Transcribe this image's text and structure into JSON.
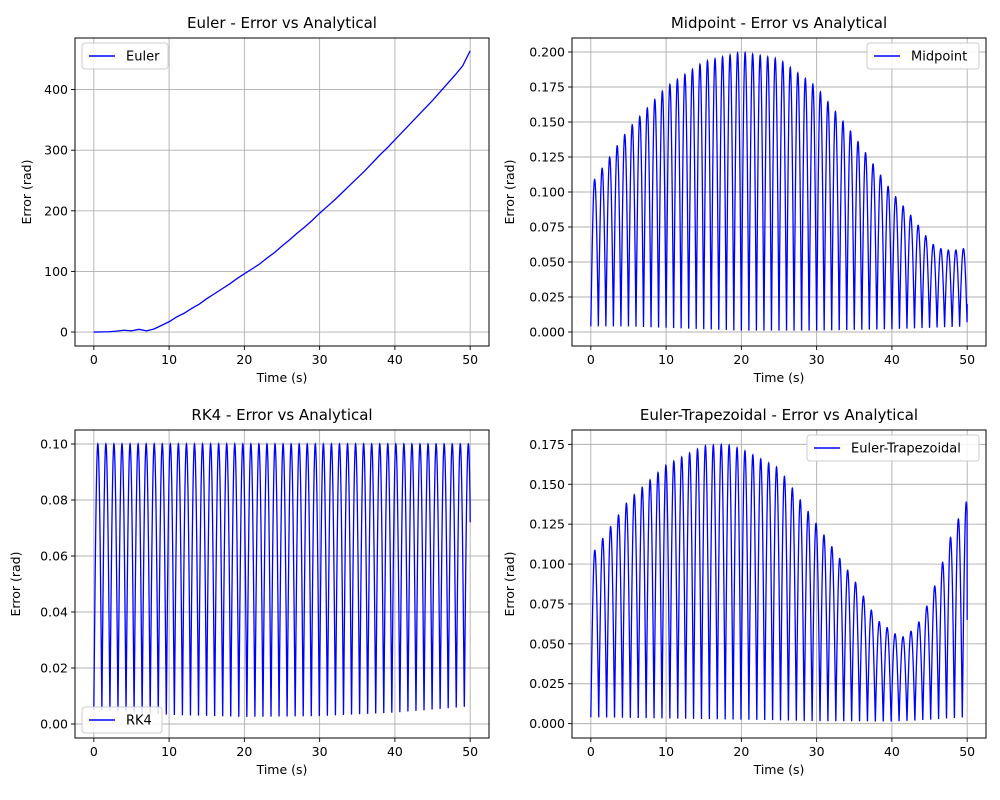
{
  "chart_data": [
    {
      "type": "line",
      "title": "Euler - Error vs Analytical",
      "xlabel": "Time (s)",
      "ylabel": "Error (rad)",
      "xlim": [
        -2.5,
        52.5
      ],
      "ylim": [
        -23,
        485
      ],
      "xticks": [
        0,
        10,
        20,
        30,
        40,
        50
      ],
      "yticks": [
        0,
        100,
        200,
        300,
        400
      ],
      "ytick_labels": [
        "0",
        "100",
        "200",
        "300",
        "400"
      ],
      "grid": true,
      "legend_loc": "upper-left",
      "color": "#0000ff",
      "series": [
        {
          "name": "Euler",
          "kind": "smooth",
          "points": [
            [
              0,
              0
            ],
            [
              2,
              0.5
            ],
            [
              3,
              1.5
            ],
            [
              4,
              3
            ],
            [
              5,
              2
            ],
            [
              6,
              4.5
            ],
            [
              7,
              2
            ],
            [
              8,
              5
            ],
            [
              9,
              11
            ],
            [
              10,
              17
            ],
            [
              11,
              25
            ],
            [
              12,
              31
            ],
            [
              13,
              39
            ],
            [
              14,
              46
            ],
            [
              15,
              55
            ],
            [
              16,
              63
            ],
            [
              17,
              71
            ],
            [
              18,
              79
            ],
            [
              19,
              88
            ],
            [
              20,
              96
            ],
            [
              21,
              104
            ],
            [
              22,
              112
            ],
            [
              23,
              122
            ],
            [
              24,
              131
            ],
            [
              25,
              142
            ],
            [
              26,
              152
            ],
            [
              27,
              163
            ],
            [
              28,
              173
            ],
            [
              29,
              184
            ],
            [
              30,
              196
            ],
            [
              31,
              207
            ],
            [
              32,
              218
            ],
            [
              33,
              230
            ],
            [
              34,
              242
            ],
            [
              35,
              254
            ],
            [
              36,
              266
            ],
            [
              37,
              279
            ],
            [
              38,
              292
            ],
            [
              39,
              304
            ],
            [
              40,
              317
            ],
            [
              41,
              330
            ],
            [
              42,
              343
            ],
            [
              43,
              356
            ],
            [
              44,
              369
            ],
            [
              45,
              382
            ],
            [
              46,
              396
            ],
            [
              47,
              410
            ],
            [
              48,
              424
            ],
            [
              49,
              439
            ],
            [
              50,
              464
            ]
          ]
        }
      ]
    },
    {
      "type": "line",
      "title": "Midpoint - Error vs Analytical",
      "xlabel": "Time (s)",
      "ylabel": "Error (rad)",
      "xlim": [
        -2.5,
        52.5
      ],
      "ylim": [
        -0.01,
        0.21
      ],
      "xticks": [
        0,
        10,
        20,
        30,
        40,
        50
      ],
      "yticks": [
        0,
        0.025,
        0.05,
        0.075,
        0.1,
        0.125,
        0.15,
        0.175,
        0.2
      ],
      "ytick_labels": [
        "0.000",
        "0.025",
        "0.050",
        "0.075",
        "0.100",
        "0.125",
        "0.150",
        "0.175",
        "0.200"
      ],
      "grid": true,
      "legend_loc": "upper-right",
      "color": "#0000ff",
      "series": [
        {
          "name": "Midpoint",
          "kind": "oscillation",
          "period": 1.0,
          "x_end": 50,
          "end_value": 0.02,
          "envelope": [
            [
              0,
              0.105
            ],
            [
              5,
              0.145
            ],
            [
              10,
              0.175
            ],
            [
              15,
              0.193
            ],
            [
              20,
              0.2
            ],
            [
              25,
              0.195
            ],
            [
              30,
              0.175
            ],
            [
              35,
              0.14
            ],
            [
              40,
              0.1
            ],
            [
              43,
              0.08
            ],
            [
              45,
              0.065
            ],
            [
              46,
              0.06
            ],
            [
              48,
              0.058
            ],
            [
              50,
              0.06
            ]
          ],
          "floor": [
            [
              0,
              0.004
            ],
            [
              5,
              0.004
            ],
            [
              10,
              0.003
            ],
            [
              20,
              0.001
            ],
            [
              30,
              0.001
            ],
            [
              40,
              0.002
            ],
            [
              50,
              0.004
            ]
          ]
        }
      ]
    },
    {
      "type": "line",
      "title": "RK4 - Error vs Analytical",
      "xlabel": "Time (s)",
      "ylabel": "Error (rad)",
      "xlim": [
        -2.5,
        52.5
      ],
      "ylim": [
        -0.005,
        0.105
      ],
      "xticks": [
        0,
        10,
        20,
        30,
        40,
        50
      ],
      "yticks": [
        0,
        0.02,
        0.04,
        0.06,
        0.08,
        0.1
      ],
      "ytick_labels": [
        "0.00",
        "0.02",
        "0.04",
        "0.06",
        "0.08",
        "0.10"
      ],
      "grid": true,
      "legend_loc": "lower-left",
      "color": "#0000ff",
      "series": [
        {
          "name": "RK4",
          "kind": "oscillation",
          "period": 1.07,
          "x_end": 50,
          "end_value": 0.072,
          "envelope": [
            [
              0,
              0.1
            ],
            [
              50,
              0.1
            ]
          ],
          "floor": [
            [
              0,
              0.005
            ],
            [
              10,
              0.003
            ],
            [
              20,
              0.002
            ],
            [
              30,
              0.002
            ],
            [
              40,
              0.003
            ],
            [
              50,
              0.005
            ]
          ]
        }
      ]
    },
    {
      "type": "line",
      "title": "Euler-Trapezoidal - Error vs Analytical",
      "xlabel": "Time (s)",
      "ylabel": "Error (rad)",
      "xlim": [
        -2.5,
        52.5
      ],
      "ylim": [
        -0.009,
        0.184
      ],
      "xticks": [
        0,
        10,
        20,
        30,
        40,
        50
      ],
      "yticks": [
        0,
        0.025,
        0.05,
        0.075,
        0.1,
        0.125,
        0.15,
        0.175
      ],
      "ytick_labels": [
        "0.000",
        "0.025",
        "0.050",
        "0.075",
        "0.100",
        "0.125",
        "0.150",
        "0.175"
      ],
      "grid": true,
      "legend_loc": "upper-right",
      "color": "#0000ff",
      "series": [
        {
          "name": "Euler-Trapezoidal",
          "kind": "oscillation",
          "period": 1.05,
          "x_end": 50,
          "end_value": 0.065,
          "envelope": [
            [
              0,
              0.105
            ],
            [
              5,
              0.14
            ],
            [
              10,
              0.162
            ],
            [
              15,
              0.174
            ],
            [
              18,
              0.175
            ],
            [
              20,
              0.172
            ],
            [
              25,
              0.16
            ],
            [
              30,
              0.125
            ],
            [
              35,
              0.09
            ],
            [
              38,
              0.065
            ],
            [
              40,
              0.058
            ],
            [
              41,
              0.054
            ],
            [
              42,
              0.055
            ],
            [
              44,
              0.066
            ],
            [
              46,
              0.09
            ],
            [
              48,
              0.12
            ],
            [
              50,
              0.14
            ]
          ],
          "floor": [
            [
              0,
              0.004
            ],
            [
              10,
              0.003
            ],
            [
              20,
              0.002
            ],
            [
              30,
              0.001
            ],
            [
              40,
              0.001
            ],
            [
              50,
              0.003
            ]
          ]
        }
      ]
    }
  ]
}
